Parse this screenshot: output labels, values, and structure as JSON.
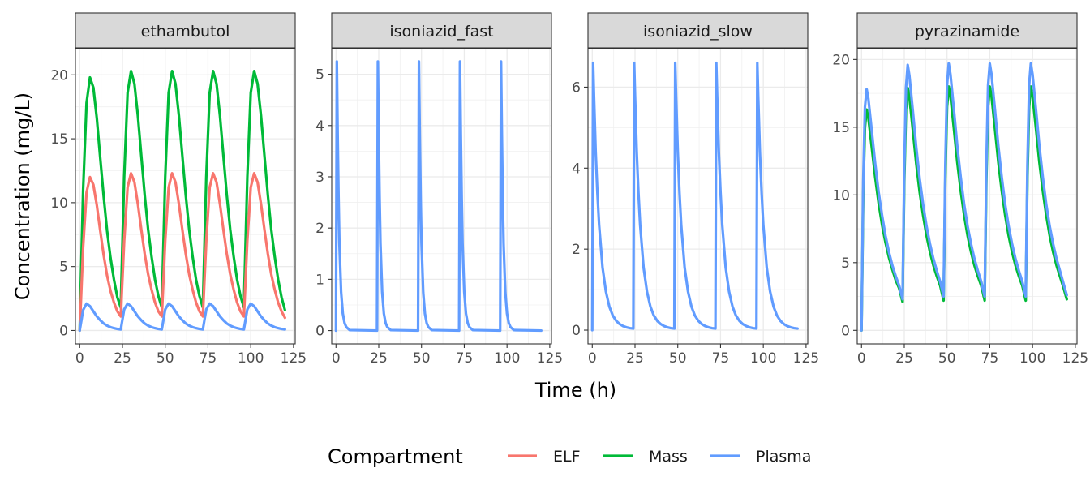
{
  "chart_data": {
    "type": "line",
    "xlabel": "Time (h)",
    "ylabel": "Concentration (mg/L)",
    "x_ticks": [
      0,
      25,
      50,
      75,
      100,
      125
    ],
    "xlim": [
      -2.5,
      126
    ],
    "legend": {
      "title": "Compartment",
      "position": "bottom",
      "entries": [
        {
          "name": "ELF",
          "color": "#F8766D"
        },
        {
          "name": "Mass",
          "color": "#00BA38"
        },
        {
          "name": "Plasma",
          "color": "#619CFF"
        }
      ]
    },
    "grid": true,
    "facets": [
      {
        "label": "ethambutol",
        "ylim": [
          -1.05,
          22.05
        ],
        "y_ticks": [
          0,
          5,
          10,
          15,
          20
        ],
        "series": [
          {
            "name": "Mass",
            "x": [
              0,
              2,
              4,
              6,
              8,
              10,
              12,
              14,
              16,
              18,
              20,
              22,
              24,
              26,
              28,
              30,
              32,
              34,
              36,
              38,
              40,
              42,
              44,
              46,
              48,
              50,
              52,
              54,
              56,
              58,
              60,
              62,
              64,
              66,
              68,
              70,
              72,
              74,
              76,
              78,
              80,
              82,
              84,
              86,
              88,
              90,
              92,
              94,
              96,
              98,
              100,
              102,
              104,
              106,
              108,
              110,
              112,
              114,
              116,
              118,
              120
            ],
            "y": [
              0,
              11.0,
              17.8,
              19.8,
              19.0,
              16.6,
              13.5,
              10.5,
              7.8,
              5.7,
              4.0,
              2.6,
              1.8,
              12.0,
              18.6,
              20.3,
              19.3,
              16.8,
              13.7,
              10.6,
              7.9,
              5.8,
              4.0,
              2.7,
              1.8,
              12.0,
              18.6,
              20.3,
              19.3,
              16.8,
              13.7,
              10.6,
              7.9,
              5.8,
              4.0,
              2.7,
              1.8,
              12.0,
              18.6,
              20.3,
              19.3,
              16.8,
              13.7,
              10.6,
              7.9,
              5.8,
              4.0,
              2.7,
              1.8,
              12.0,
              18.6,
              20.3,
              19.3,
              16.8,
              13.7,
              10.6,
              7.9,
              5.8,
              4.0,
              2.6,
              1.6
            ]
          },
          {
            "name": "ELF",
            "x": [
              0,
              2,
              4,
              6,
              8,
              10,
              12,
              14,
              16,
              18,
              20,
              22,
              24,
              26,
              28,
              30,
              32,
              34,
              36,
              38,
              40,
              42,
              44,
              46,
              48,
              50,
              52,
              54,
              56,
              58,
              60,
              62,
              64,
              66,
              68,
              70,
              72,
              74,
              76,
              78,
              80,
              82,
              84,
              86,
              88,
              90,
              92,
              94,
              96,
              98,
              100,
              102,
              104,
              106,
              108,
              110,
              112,
              114,
              116,
              118,
              120
            ],
            "y": [
              0,
              6.5,
              10.8,
              12.0,
              11.4,
              9.8,
              7.8,
              5.9,
              4.3,
              3.1,
              2.2,
              1.5,
              1.1,
              7.0,
              11.2,
              12.3,
              11.6,
              9.9,
              7.9,
              6.0,
              4.4,
              3.2,
              2.2,
              1.5,
              1.1,
              7.0,
              11.2,
              12.3,
              11.6,
              9.9,
              7.9,
              6.0,
              4.4,
              3.2,
              2.2,
              1.5,
              1.1,
              7.0,
              11.2,
              12.3,
              11.6,
              9.9,
              7.9,
              6.0,
              4.4,
              3.2,
              2.2,
              1.5,
              1.1,
              7.0,
              11.2,
              12.3,
              11.6,
              9.9,
              7.9,
              6.0,
              4.4,
              3.2,
              2.2,
              1.5,
              1.0
            ]
          },
          {
            "name": "Plasma",
            "x": [
              0,
              2,
              4,
              6,
              8,
              10,
              12,
              14,
              16,
              18,
              20,
              22,
              24,
              26,
              28,
              30,
              32,
              34,
              36,
              38,
              40,
              42,
              44,
              46,
              48,
              50,
              52,
              54,
              56,
              58,
              60,
              62,
              64,
              66,
              68,
              70,
              72,
              74,
              76,
              78,
              80,
              82,
              84,
              86,
              88,
              90,
              92,
              94,
              96,
              98,
              100,
              102,
              104,
              106,
              108,
              110,
              112,
              114,
              116,
              118,
              120
            ],
            "y": [
              0,
              1.6,
              2.1,
              1.9,
              1.5,
              1.1,
              0.8,
              0.55,
              0.38,
              0.26,
              0.18,
              0.12,
              0.08,
              1.65,
              2.1,
              1.9,
              1.5,
              1.1,
              0.8,
              0.55,
              0.38,
              0.26,
              0.18,
              0.12,
              0.08,
              1.65,
              2.1,
              1.9,
              1.5,
              1.1,
              0.8,
              0.55,
              0.38,
              0.26,
              0.18,
              0.12,
              0.08,
              1.65,
              2.1,
              1.9,
              1.5,
              1.1,
              0.8,
              0.55,
              0.38,
              0.26,
              0.18,
              0.12,
              0.08,
              1.65,
              2.1,
              1.9,
              1.5,
              1.1,
              0.8,
              0.55,
              0.38,
              0.26,
              0.18,
              0.12,
              0.08
            ]
          }
        ]
      },
      {
        "label": "isoniazid_fast",
        "ylim": [
          -0.26,
          5.5
        ],
        "y_ticks": [
          0,
          1,
          2,
          3,
          4,
          5
        ],
        "series": [
          {
            "name": "Plasma",
            "x": [
              0,
              0.5,
              1,
              1.5,
              2,
              3,
              4,
              5,
              6,
              8,
              24,
              24.5,
              25,
              25.5,
              26,
              27,
              28,
              29,
              30,
              32,
              48,
              48.5,
              49,
              49.5,
              50,
              51,
              52,
              53,
              54,
              56,
              72,
              72.5,
              73,
              73.5,
              74,
              75,
              76,
              77,
              78,
              80,
              96,
              96.5,
              97,
              97.5,
              98,
              99,
              100,
              101,
              102,
              104,
              120
            ],
            "y": [
              0,
              5.25,
              3.8,
              2.6,
              1.7,
              0.75,
              0.33,
              0.15,
              0.07,
              0.01,
              0,
              5.25,
              3.8,
              2.6,
              1.7,
              0.75,
              0.33,
              0.15,
              0.07,
              0.01,
              0,
              5.25,
              3.8,
              2.6,
              1.7,
              0.75,
              0.33,
              0.15,
              0.07,
              0.01,
              0,
              5.25,
              3.8,
              2.6,
              1.7,
              0.75,
              0.33,
              0.15,
              0.07,
              0.01,
              0,
              5.25,
              3.8,
              2.6,
              1.7,
              0.75,
              0.33,
              0.15,
              0.07,
              0.01,
              0
            ]
          }
        ]
      },
      {
        "label": "isoniazid_slow",
        "ylim": [
          -0.34,
          6.95
        ],
        "y_ticks": [
          0,
          2,
          4,
          6
        ],
        "series": [
          {
            "name": "Plasma",
            "x": [
              0,
              0.5,
              1,
              2,
              3,
              4,
              6,
              8,
              10,
              12,
              14,
              16,
              18,
              20,
              22,
              24,
              24.5,
              25,
              26,
              27,
              28,
              30,
              32,
              34,
              36,
              38,
              40,
              42,
              44,
              46,
              48,
              48.5,
              49,
              50,
              51,
              52,
              54,
              56,
              58,
              60,
              62,
              64,
              66,
              68,
              70,
              72,
              72.5,
              73,
              74,
              75,
              76,
              78,
              80,
              82,
              84,
              86,
              88,
              90,
              92,
              94,
              96,
              96.5,
              97,
              98,
              99,
              100,
              102,
              104,
              106,
              108,
              110,
              112,
              114,
              116,
              118,
              120
            ],
            "y": [
              0,
              6.6,
              5.8,
              4.4,
              3.4,
              2.6,
              1.55,
              0.95,
              0.58,
              0.36,
              0.23,
              0.15,
              0.1,
              0.07,
              0.05,
              0.04,
              6.6,
              5.8,
              4.4,
              3.4,
              2.6,
              1.55,
              0.95,
              0.58,
              0.36,
              0.23,
              0.15,
              0.1,
              0.07,
              0.05,
              0.04,
              6.6,
              5.8,
              4.4,
              3.4,
              2.6,
              1.55,
              0.95,
              0.58,
              0.36,
              0.23,
              0.15,
              0.1,
              0.07,
              0.05,
              0.04,
              6.6,
              5.8,
              4.4,
              3.4,
              2.6,
              1.55,
              0.95,
              0.58,
              0.36,
              0.23,
              0.15,
              0.1,
              0.07,
              0.05,
              0.04,
              6.6,
              5.8,
              4.4,
              3.4,
              2.6,
              1.55,
              0.95,
              0.58,
              0.36,
              0.23,
              0.15,
              0.1,
              0.07,
              0.05,
              0.04
            ]
          }
        ]
      },
      {
        "label": "pyrazinamide",
        "ylim": [
          -1.0,
          20.8
        ],
        "y_ticks": [
          0,
          5,
          10,
          15,
          20
        ],
        "series": [
          {
            "name": "Mass",
            "x": [
              0,
              1,
              2,
              3,
              4,
              6,
              8,
              10,
              12,
              14,
              16,
              18,
              20,
              22,
              24,
              25,
              26,
              27,
              28,
              30,
              32,
              34,
              36,
              38,
              40,
              42,
              44,
              46,
              48,
              49,
              50,
              51,
              52,
              54,
              56,
              58,
              60,
              62,
              64,
              66,
              68,
              70,
              72,
              73,
              74,
              75,
              76,
              78,
              80,
              82,
              84,
              86,
              88,
              90,
              92,
              94,
              96,
              97,
              98,
              99,
              100,
              102,
              104,
              106,
              108,
              110,
              112,
              114,
              116,
              118,
              120
            ],
            "y": [
              0,
              10.0,
              15.0,
              16.3,
              15.7,
              13.5,
              11.3,
              9.4,
              7.8,
              6.5,
              5.4,
              4.5,
              3.7,
              3.1,
              2.1,
              11.0,
              16.3,
              17.9,
              17.2,
              14.8,
              12.3,
              10.2,
              8.5,
              7.0,
              5.8,
              4.8,
              4.0,
              3.3,
              2.2,
              11.2,
              16.5,
              18.0,
              17.3,
              14.9,
              12.4,
              10.3,
              8.5,
              7.0,
              5.8,
              4.8,
              4.0,
              3.3,
              2.2,
              11.2,
              16.5,
              18.0,
              17.3,
              14.9,
              12.4,
              10.3,
              8.5,
              7.0,
              5.8,
              4.8,
              4.0,
              3.3,
              2.2,
              11.2,
              16.5,
              18.0,
              17.3,
              14.9,
              12.4,
              10.3,
              8.5,
              7.0,
              5.8,
              4.8,
              4.0,
              3.2,
              2.3
            ]
          },
          {
            "name": "Plasma",
            "x": [
              0,
              1,
              2,
              3,
              4,
              6,
              8,
              10,
              12,
              14,
              16,
              18,
              20,
              22,
              24,
              25,
              26,
              27,
              28,
              30,
              32,
              34,
              36,
              38,
              40,
              42,
              44,
              46,
              48,
              49,
              50,
              51,
              52,
              54,
              56,
              58,
              60,
              62,
              64,
              66,
              68,
              70,
              72,
              73,
              74,
              75,
              76,
              78,
              80,
              82,
              84,
              86,
              88,
              90,
              92,
              94,
              96,
              97,
              98,
              99,
              100,
              102,
              104,
              106,
              108,
              110,
              112,
              114,
              116,
              118,
              120
            ],
            "y": [
              0,
              11.0,
              16.5,
              17.8,
              17.1,
              14.7,
              12.3,
              10.2,
              8.5,
              7.0,
              5.8,
              4.8,
              4.0,
              3.3,
              2.3,
              12.0,
              17.9,
              19.6,
              18.8,
              16.2,
              13.5,
              11.2,
              9.3,
              7.7,
              6.4,
              5.3,
              4.4,
              3.6,
              2.5,
              12.2,
              18.1,
              19.7,
              18.9,
              16.3,
              13.6,
              11.3,
              9.3,
              7.7,
              6.4,
              5.3,
              4.4,
              3.6,
              2.5,
              12.2,
              18.1,
              19.7,
              18.9,
              16.3,
              13.6,
              11.3,
              9.3,
              7.7,
              6.4,
              5.3,
              4.4,
              3.6,
              2.5,
              12.2,
              18.1,
              19.7,
              18.9,
              16.3,
              13.6,
              11.3,
              9.3,
              7.7,
              6.4,
              5.3,
              4.4,
              3.5,
              2.6
            ]
          }
        ]
      }
    ]
  }
}
